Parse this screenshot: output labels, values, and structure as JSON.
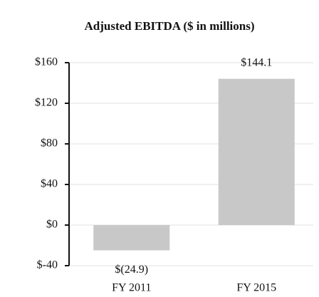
{
  "chart_data": {
    "type": "bar",
    "title": "Adjusted EBITDA ($ in millions)",
    "categories": [
      "FY 2011",
      "FY 2015"
    ],
    "values": [
      -24.9,
      144.1
    ],
    "value_labels": [
      "$(24.9)",
      "$144.1"
    ],
    "color": "#c8c8c8",
    "ylim": [
      -40,
      160
    ],
    "yticks": [
      {
        "value": -40,
        "label": "$-40"
      },
      {
        "value": 0,
        "label": "$0"
      },
      {
        "value": 40,
        "label": "$40"
      },
      {
        "value": 80,
        "label": "$80"
      },
      {
        "value": 120,
        "label": "$120"
      },
      {
        "value": 160,
        "label": "$160"
      }
    ],
    "grid": true
  }
}
